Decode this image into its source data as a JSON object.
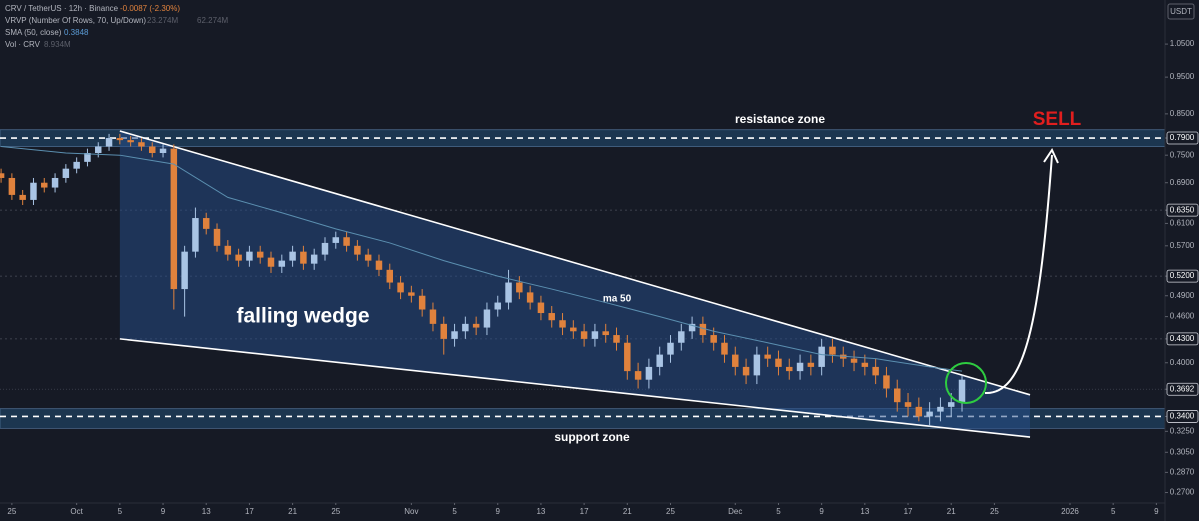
{
  "chart_data": {
    "type": "candlestick",
    "title": "CRV / TetherUS · 12h · Binance",
    "change": "-0.0087 (-2.30%)",
    "currency": "USDT",
    "indicators": [
      {
        "label": "VRVP (Number Of Rows, 70, Up/Down)",
        "values": [
          "23.274M",
          "62.274M"
        ]
      },
      {
        "label": "SMA (50, close)",
        "values": [
          "0.3848"
        ]
      },
      {
        "label": "Vol · CRV",
        "values": [
          "8.934M"
        ]
      }
    ],
    "log_scale": true,
    "grid": false,
    "up_color": "#a9c4e4",
    "down_color": "#e0823d",
    "xlim": [
      -1.1,
      106.8
    ],
    "ylim": [
      0.26,
      1.2
    ],
    "xticks": [
      {
        "value": 0,
        "label": "25"
      },
      {
        "value": 6,
        "label": "Oct"
      },
      {
        "value": 10,
        "label": "5"
      },
      {
        "value": 14,
        "label": "9"
      },
      {
        "value": 18,
        "label": "13"
      },
      {
        "value": 22,
        "label": "17"
      },
      {
        "value": 26,
        "label": "21"
      },
      {
        "value": 30,
        "label": "25"
      },
      {
        "value": 37,
        "label": "Nov"
      },
      {
        "value": 41,
        "label": "5"
      },
      {
        "value": 45,
        "label": "9"
      },
      {
        "value": 49,
        "label": "13"
      },
      {
        "value": 53,
        "label": "17"
      },
      {
        "value": 57,
        "label": "21"
      },
      {
        "value": 61,
        "label": "25"
      },
      {
        "value": 67,
        "label": "Dec"
      },
      {
        "value": 71,
        "label": "5"
      },
      {
        "value": 75,
        "label": "9"
      },
      {
        "value": 79,
        "label": "13"
      },
      {
        "value": 83,
        "label": "17"
      },
      {
        "value": 87,
        "label": "21"
      },
      {
        "value": 91,
        "label": "25"
      },
      {
        "value": 98,
        "label": "2026"
      },
      {
        "value": 102,
        "label": "5"
      },
      {
        "value": 106,
        "label": "9"
      }
    ],
    "yticks": [
      {
        "value": 1.05,
        "label": "1.0500"
      },
      {
        "value": 0.95,
        "label": "0.9500"
      },
      {
        "value": 0.85,
        "label": "0.8500"
      },
      {
        "value": 0.79,
        "label": "0.7900"
      },
      {
        "value": 0.75,
        "label": "0.7500"
      },
      {
        "value": 0.69,
        "label": "0.6900"
      },
      {
        "value": 0.635,
        "label": "0.6350"
      },
      {
        "value": 0.61,
        "label": "0.6100"
      },
      {
        "value": 0.57,
        "label": "0.5700"
      },
      {
        "value": 0.52,
        "label": "0.5200"
      },
      {
        "value": 0.49,
        "label": "0.4900"
      },
      {
        "value": 0.46,
        "label": "0.4600"
      },
      {
        "value": 0.43,
        "label": "0.4300"
      },
      {
        "value": 0.4,
        "label": "0.4000"
      },
      {
        "value": 0.3692,
        "label": "0.3692"
      },
      {
        "value": 0.34,
        "label": "0.3400"
      },
      {
        "value": 0.325,
        "label": "0.3250"
      },
      {
        "value": 0.305,
        "label": "0.3050"
      },
      {
        "value": 0.287,
        "label": "0.2870"
      },
      {
        "value": 0.27,
        "label": "0.2700"
      }
    ],
    "levels": [
      0.635,
      0.52,
      0.43
    ],
    "last_price": 0.3692,
    "zones": [
      {
        "label": "resistance zone",
        "from": 0.77,
        "to": 0.81,
        "level": 0.79
      },
      {
        "label": "support zone",
        "from": 0.328,
        "to": 0.348,
        "level": 0.34
      }
    ],
    "wedge": {
      "label": "falling wedge",
      "x": [
        10,
        94.3
      ],
      "upper": [
        0.807,
        0.363
      ],
      "lower": [
        0.43,
        0.3194
      ]
    },
    "sma": {
      "label": "ma 50",
      "color": "#5b8fb0",
      "x": [
        -1,
        5,
        10,
        15,
        20,
        25,
        30,
        35,
        40,
        45,
        50,
        55,
        60,
        65,
        70,
        75,
        80,
        85,
        88
      ],
      "values": [
        0.77,
        0.755,
        0.75,
        0.73,
        0.66,
        0.63,
        0.6,
        0.575,
        0.545,
        0.52,
        0.5,
        0.48,
        0.46,
        0.44,
        0.425,
        0.41,
        0.405,
        0.395,
        0.39
      ]
    },
    "signal": "SELL",
    "x": [
      -1,
      0,
      1,
      2,
      3,
      4,
      5,
      6,
      7,
      8,
      9,
      10,
      11,
      12,
      13,
      14,
      15,
      16,
      17,
      18,
      19,
      20,
      21,
      22,
      23,
      24,
      25,
      26,
      27,
      28,
      29,
      30,
      31,
      32,
      33,
      34,
      35,
      36,
      37,
      38,
      39,
      40,
      41,
      42,
      43,
      44,
      45,
      46,
      47,
      48,
      49,
      50,
      51,
      52,
      53,
      54,
      55,
      56,
      57,
      58,
      59,
      60,
      61,
      62,
      63,
      64,
      65,
      66,
      67,
      68,
      69,
      70,
      71,
      72,
      73,
      74,
      75,
      76,
      77,
      78,
      79,
      80,
      81,
      82,
      83,
      84,
      85,
      86,
      87,
      88
    ],
    "open": [
      0.71,
      0.7,
      0.665,
      0.655,
      0.69,
      0.68,
      0.7,
      0.72,
      0.735,
      0.755,
      0.77,
      0.79,
      0.785,
      0.78,
      0.77,
      0.755,
      0.765,
      0.5,
      0.56,
      0.62,
      0.6,
      0.57,
      0.555,
      0.545,
      0.56,
      0.55,
      0.535,
      0.545,
      0.56,
      0.54,
      0.555,
      0.575,
      0.585,
      0.57,
      0.555,
      0.545,
      0.53,
      0.51,
      0.495,
      0.49,
      0.47,
      0.45,
      0.43,
      0.44,
      0.45,
      0.445,
      0.47,
      0.48,
      0.51,
      0.495,
      0.48,
      0.465,
      0.455,
      0.445,
      0.44,
      0.43,
      0.44,
      0.435,
      0.425,
      0.39,
      0.38,
      0.395,
      0.41,
      0.425,
      0.44,
      0.45,
      0.435,
      0.425,
      0.41,
      0.395,
      0.385,
      0.41,
      0.405,
      0.395,
      0.39,
      0.4,
      0.395,
      0.42,
      0.41,
      0.405,
      0.4,
      0.395,
      0.385,
      0.37,
      0.355,
      0.35,
      0.34,
      0.345,
      0.35,
      0.355
    ],
    "high": [
      0.72,
      0.71,
      0.675,
      0.7,
      0.7,
      0.71,
      0.73,
      0.745,
      0.765,
      0.78,
      0.8,
      0.8,
      0.795,
      0.79,
      0.78,
      0.775,
      0.775,
      0.57,
      0.64,
      0.63,
      0.61,
      0.58,
      0.565,
      0.57,
      0.57,
      0.56,
      0.555,
      0.57,
      0.57,
      0.565,
      0.585,
      0.595,
      0.595,
      0.58,
      0.565,
      0.555,
      0.54,
      0.52,
      0.505,
      0.5,
      0.48,
      0.46,
      0.45,
      0.46,
      0.46,
      0.48,
      0.49,
      0.53,
      0.52,
      0.505,
      0.49,
      0.475,
      0.465,
      0.455,
      0.45,
      0.45,
      0.45,
      0.445,
      0.435,
      0.4,
      0.405,
      0.42,
      0.435,
      0.45,
      0.46,
      0.46,
      0.445,
      0.435,
      0.42,
      0.405,
      0.42,
      0.42,
      0.415,
      0.405,
      0.41,
      0.41,
      0.43,
      0.43,
      0.42,
      0.415,
      0.41,
      0.405,
      0.395,
      0.38,
      0.365,
      0.36,
      0.355,
      0.36,
      0.365,
      0.385
    ],
    "low": [
      0.69,
      0.655,
      0.645,
      0.645,
      0.67,
      0.67,
      0.69,
      0.71,
      0.725,
      0.745,
      0.76,
      0.775,
      0.77,
      0.76,
      0.745,
      0.745,
      0.47,
      0.46,
      0.55,
      0.59,
      0.56,
      0.545,
      0.535,
      0.535,
      0.54,
      0.525,
      0.525,
      0.535,
      0.53,
      0.53,
      0.545,
      0.565,
      0.56,
      0.545,
      0.535,
      0.52,
      0.5,
      0.485,
      0.48,
      0.46,
      0.44,
      0.41,
      0.42,
      0.43,
      0.435,
      0.435,
      0.46,
      0.47,
      0.485,
      0.47,
      0.455,
      0.445,
      0.435,
      0.43,
      0.42,
      0.42,
      0.425,
      0.415,
      0.38,
      0.37,
      0.37,
      0.385,
      0.4,
      0.415,
      0.43,
      0.425,
      0.415,
      0.4,
      0.385,
      0.375,
      0.375,
      0.395,
      0.385,
      0.38,
      0.38,
      0.385,
      0.385,
      0.4,
      0.395,
      0.39,
      0.385,
      0.375,
      0.36,
      0.345,
      0.34,
      0.335,
      0.33,
      0.335,
      0.34,
      0.345
    ],
    "close": [
      0.7,
      0.665,
      0.655,
      0.69,
      0.68,
      0.7,
      0.72,
      0.735,
      0.755,
      0.77,
      0.79,
      0.785,
      0.78,
      0.77,
      0.755,
      0.765,
      0.5,
      0.56,
      0.62,
      0.6,
      0.57,
      0.555,
      0.545,
      0.56,
      0.55,
      0.535,
      0.545,
      0.56,
      0.54,
      0.555,
      0.575,
      0.585,
      0.57,
      0.555,
      0.545,
      0.53,
      0.51,
      0.495,
      0.49,
      0.47,
      0.45,
      0.43,
      0.44,
      0.45,
      0.445,
      0.47,
      0.48,
      0.51,
      0.495,
      0.48,
      0.465,
      0.455,
      0.445,
      0.44,
      0.43,
      0.44,
      0.435,
      0.425,
      0.39,
      0.38,
      0.395,
      0.41,
      0.425,
      0.44,
      0.45,
      0.435,
      0.425,
      0.41,
      0.395,
      0.385,
      0.41,
      0.405,
      0.395,
      0.39,
      0.4,
      0.395,
      0.42,
      0.41,
      0.405,
      0.4,
      0.395,
      0.385,
      0.37,
      0.355,
      0.35,
      0.34,
      0.345,
      0.35,
      0.355,
      0.38
    ]
  }
}
